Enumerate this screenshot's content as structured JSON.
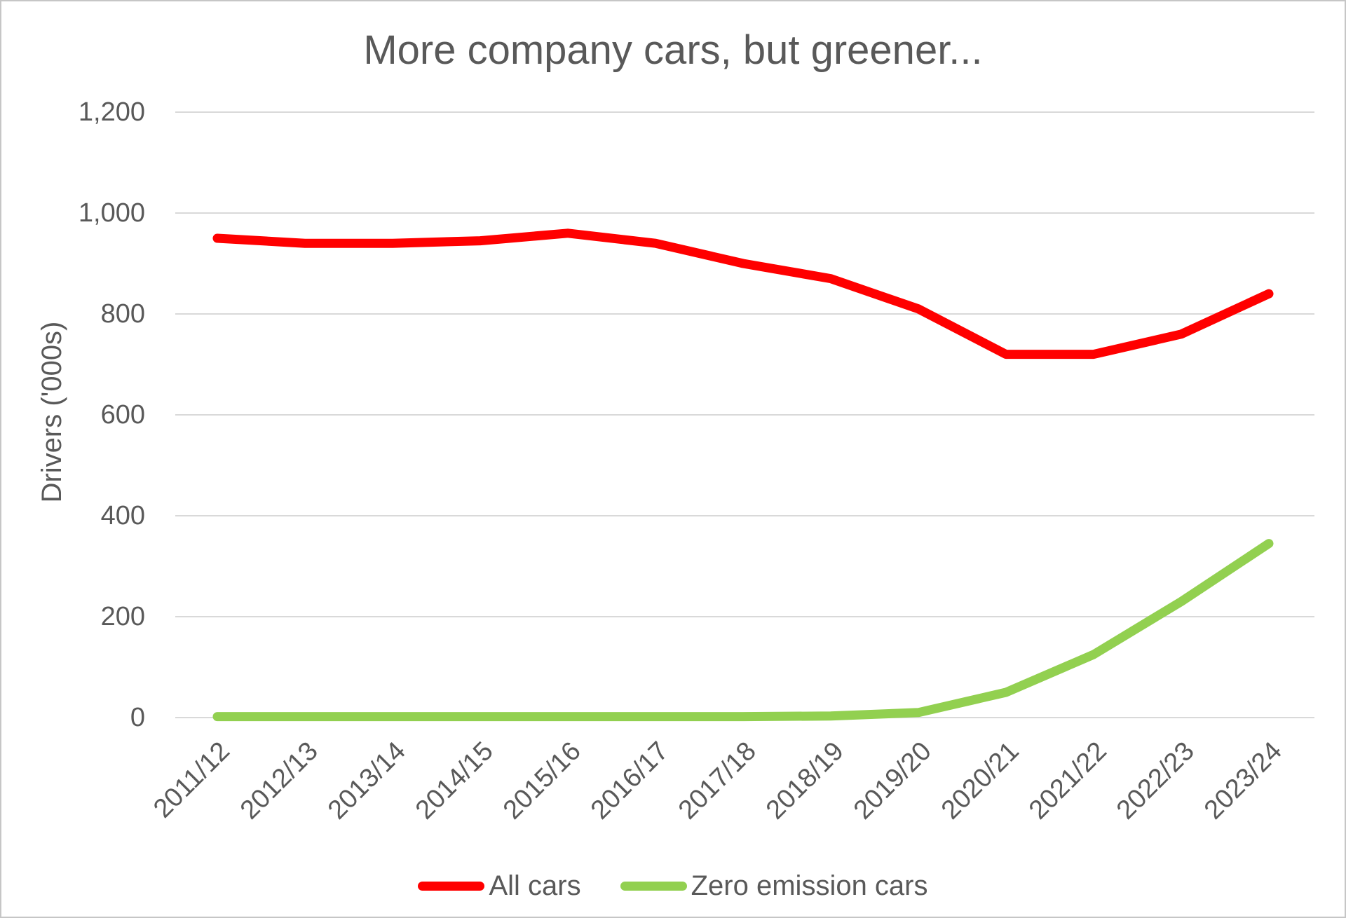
{
  "chart_data": {
    "type": "line",
    "title": "More company cars, but greener...",
    "ylabel": "Drivers ('000s)",
    "xlabel": "",
    "categories": [
      "2011/12",
      "2012/13",
      "2013/14",
      "2014/15",
      "2015/16",
      "2016/17",
      "2017/18",
      "2018/19",
      "2019/20",
      "2020/21",
      "2021/22",
      "2022/23",
      "2023/24"
    ],
    "series": [
      {
        "name": "All cars",
        "color": "#ff0000",
        "values": [
          950,
          940,
          940,
          945,
          960,
          940,
          900,
          870,
          810,
          720,
          720,
          760,
          840
        ]
      },
      {
        "name": "Zero emission cars",
        "color": "#92d050",
        "values": [
          2,
          2,
          2,
          2,
          2,
          2,
          2,
          3,
          10,
          50,
          125,
          230,
          345
        ]
      }
    ],
    "y_axis": {
      "min": 0,
      "max": 1200,
      "tick_step": 200,
      "tick_labels": [
        "0",
        "200",
        "400",
        "600",
        "800",
        "1,000",
        "1,200"
      ]
    },
    "grid": "horizontal",
    "legend_position": "bottom"
  },
  "colors": {
    "text": "#595959",
    "gridline": "#d9d9d9",
    "background": "#ffffff",
    "border": "#c6c6c6"
  }
}
